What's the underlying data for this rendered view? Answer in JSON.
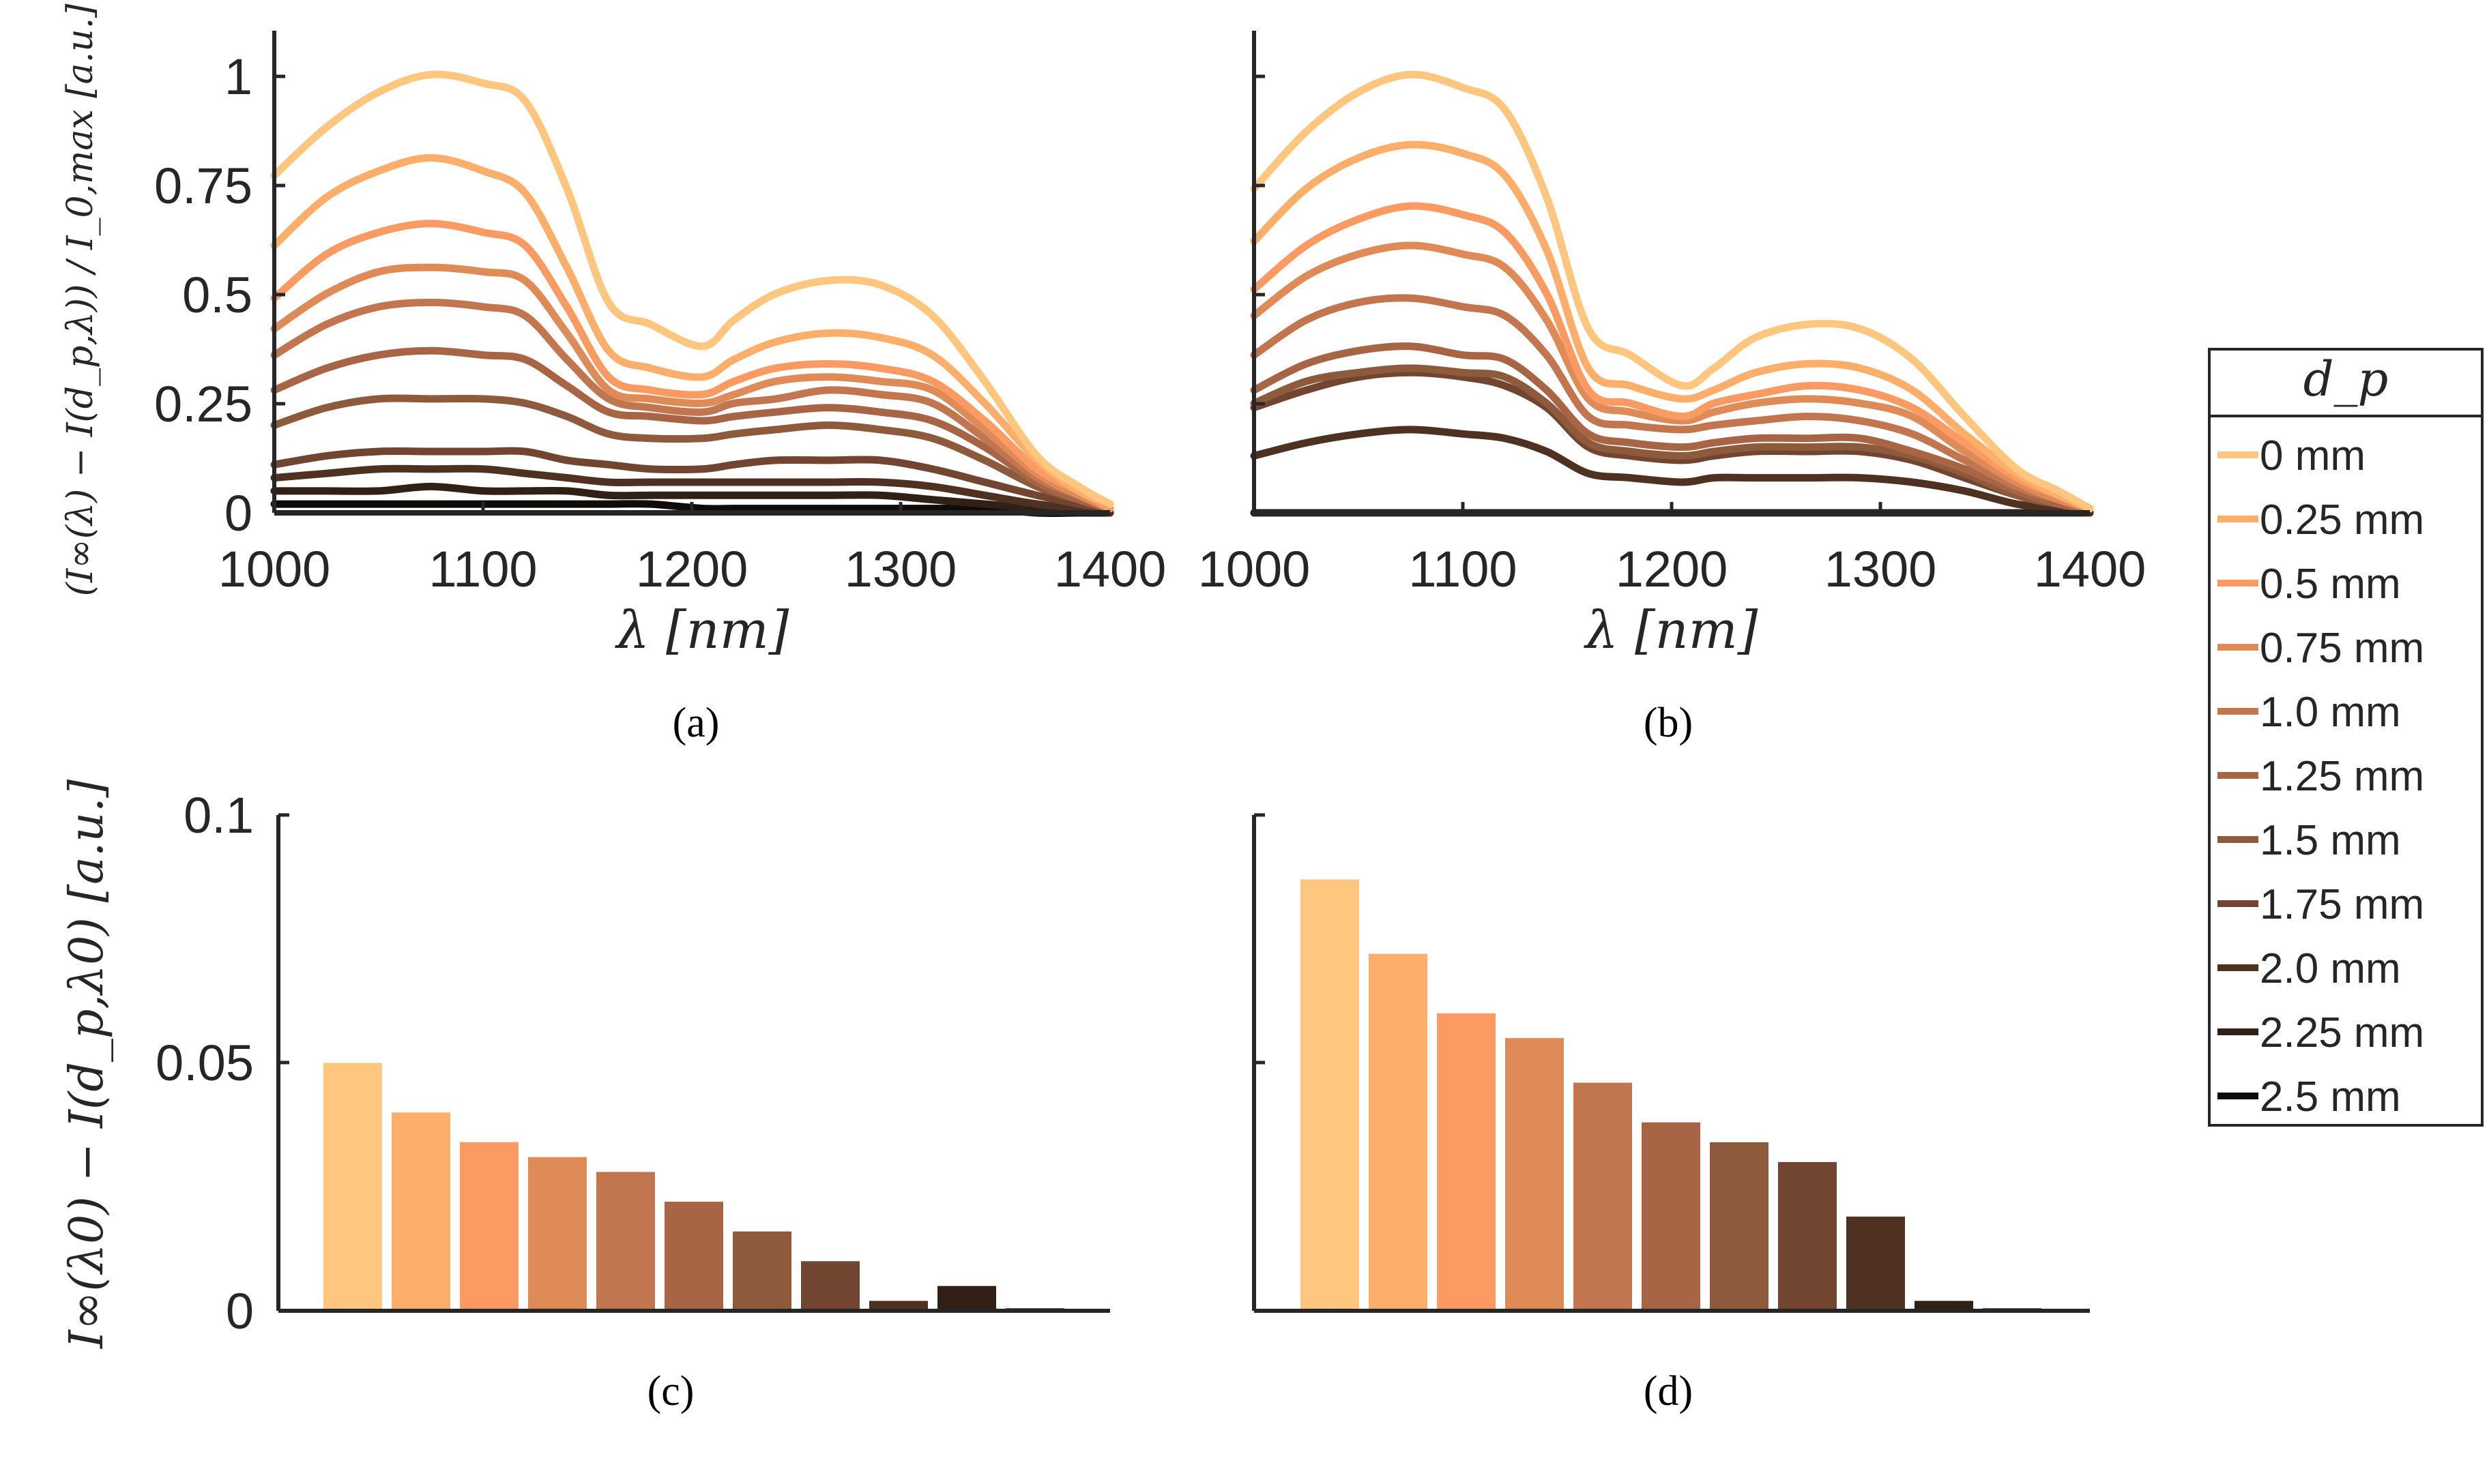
{
  "legend": {
    "title": "d_p",
    "entries": [
      {
        "label": "0 mm",
        "color": "#fec67f"
      },
      {
        "label": "0.25 mm",
        "color": "#fdae6b"
      },
      {
        "label": "0.5 mm",
        "color": "#fb9a62"
      },
      {
        "label": "0.75 mm",
        "color": "#de8b58"
      },
      {
        "label": "1.0 mm",
        "color": "#c17650"
      },
      {
        "label": "1.25 mm",
        "color": "#a86545"
      },
      {
        "label": "1.5 mm",
        "color": "#8e5a3c"
      },
      {
        "label": "1.75 mm",
        "color": "#714530"
      },
      {
        "label": "2.0 mm",
        "color": "#4f3121"
      },
      {
        "label": "2.25 mm",
        "color": "#302016"
      },
      {
        "label": "2.5 mm",
        "color": "#0f0b08"
      }
    ]
  },
  "chart_data": [
    {
      "panel": "(a)",
      "type": "line",
      "xlabel": "λ [nm]",
      "ylabel": "(I∞(λ) − I(d_p,λ)) / I_0,max [a.u.]",
      "xlim": [
        1000,
        1400
      ],
      "ylim": [
        0,
        1.1
      ],
      "xticks": [
        "1000",
        "1100",
        "1200",
        "1300",
        "1400"
      ],
      "yticks": [
        "0",
        "0.25",
        "0.5",
        "0.75",
        "1"
      ],
      "x": [
        1000,
        1025,
        1050,
        1075,
        1100,
        1120,
        1140,
        1160,
        1180,
        1205,
        1220,
        1240,
        1265,
        1290,
        1315,
        1340,
        1365,
        1385,
        1400
      ],
      "series": [
        {
          "name": "0 mm",
          "values": [
            0.77,
            0.88,
            0.96,
            1.0,
            0.98,
            0.94,
            0.74,
            0.48,
            0.43,
            0.38,
            0.44,
            0.5,
            0.53,
            0.52,
            0.45,
            0.3,
            0.13,
            0.06,
            0.02
          ]
        },
        {
          "name": "0.25 mm",
          "values": [
            0.61,
            0.72,
            0.78,
            0.81,
            0.78,
            0.73,
            0.56,
            0.37,
            0.33,
            0.31,
            0.35,
            0.39,
            0.41,
            0.4,
            0.36,
            0.25,
            0.12,
            0.05,
            0.02
          ]
        },
        {
          "name": "0.5 mm",
          "values": [
            0.49,
            0.59,
            0.64,
            0.66,
            0.64,
            0.61,
            0.47,
            0.31,
            0.28,
            0.27,
            0.3,
            0.33,
            0.34,
            0.33,
            0.3,
            0.21,
            0.1,
            0.05,
            0.01
          ]
        },
        {
          "name": "0.75 mm",
          "values": [
            0.42,
            0.5,
            0.55,
            0.56,
            0.55,
            0.53,
            0.41,
            0.28,
            0.26,
            0.25,
            0.27,
            0.3,
            0.31,
            0.3,
            0.28,
            0.19,
            0.09,
            0.04,
            0.01
          ]
        },
        {
          "name": "1.0 mm",
          "values": [
            0.36,
            0.43,
            0.47,
            0.48,
            0.47,
            0.45,
            0.35,
            0.26,
            0.24,
            0.23,
            0.25,
            0.26,
            0.28,
            0.27,
            0.25,
            0.17,
            0.08,
            0.04,
            0.01
          ]
        },
        {
          "name": "1.25 mm",
          "values": [
            0.28,
            0.33,
            0.36,
            0.37,
            0.36,
            0.35,
            0.29,
            0.23,
            0.22,
            0.21,
            0.22,
            0.23,
            0.24,
            0.23,
            0.21,
            0.15,
            0.07,
            0.03,
            0.01
          ]
        },
        {
          "name": "1.5 mm",
          "values": [
            0.2,
            0.24,
            0.26,
            0.26,
            0.26,
            0.25,
            0.22,
            0.18,
            0.17,
            0.17,
            0.18,
            0.19,
            0.2,
            0.19,
            0.17,
            0.12,
            0.06,
            0.03,
            0.01
          ]
        },
        {
          "name": "1.75 mm",
          "values": [
            0.11,
            0.13,
            0.14,
            0.14,
            0.14,
            0.14,
            0.12,
            0.11,
            0.1,
            0.1,
            0.11,
            0.12,
            0.12,
            0.12,
            0.1,
            0.07,
            0.04,
            0.02,
            0.01
          ]
        },
        {
          "name": "2.0 mm",
          "values": [
            0.08,
            0.09,
            0.1,
            0.1,
            0.1,
            0.09,
            0.08,
            0.07,
            0.07,
            0.07,
            0.07,
            0.07,
            0.07,
            0.07,
            0.06,
            0.04,
            0.02,
            0.01,
            0.0
          ]
        },
        {
          "name": "2.25 mm",
          "values": [
            0.05,
            0.05,
            0.05,
            0.06,
            0.05,
            0.05,
            0.05,
            0.04,
            0.04,
            0.04,
            0.04,
            0.04,
            0.04,
            0.04,
            0.03,
            0.02,
            0.01,
            0.01,
            0.0
          ]
        },
        {
          "name": "2.5 mm",
          "values": [
            0.02,
            0.02,
            0.02,
            0.02,
            0.02,
            0.02,
            0.02,
            0.02,
            0.02,
            0.01,
            0.01,
            0.01,
            0.01,
            0.01,
            0.01,
            0.01,
            0.0,
            0.0,
            0.0
          ]
        }
      ]
    },
    {
      "panel": "(b)",
      "type": "line",
      "xlabel": "λ [nm]",
      "xlim": [
        1000,
        1400
      ],
      "ylim": [
        0,
        1.1
      ],
      "xticks": [
        "1000",
        "1100",
        "1200",
        "1300",
        "1400"
      ],
      "x": [
        1000,
        1025,
        1050,
        1075,
        1100,
        1120,
        1140,
        1160,
        1180,
        1205,
        1220,
        1240,
        1265,
        1290,
        1315,
        1340,
        1365,
        1385,
        1400
      ],
      "series": [
        {
          "name": "0 mm",
          "values": [
            0.74,
            0.87,
            0.96,
            1.0,
            0.97,
            0.92,
            0.72,
            0.42,
            0.36,
            0.29,
            0.33,
            0.4,
            0.43,
            0.42,
            0.35,
            0.22,
            0.1,
            0.05,
            0.01
          ]
        },
        {
          "name": "0.25 mm",
          "values": [
            0.62,
            0.74,
            0.81,
            0.84,
            0.82,
            0.77,
            0.6,
            0.33,
            0.29,
            0.26,
            0.28,
            0.32,
            0.34,
            0.33,
            0.28,
            0.18,
            0.09,
            0.04,
            0.01
          ]
        },
        {
          "name": "0.5 mm",
          "values": [
            0.51,
            0.61,
            0.67,
            0.7,
            0.68,
            0.64,
            0.5,
            0.28,
            0.25,
            0.22,
            0.25,
            0.27,
            0.29,
            0.28,
            0.24,
            0.16,
            0.08,
            0.04,
            0.01
          ]
        },
        {
          "name": "0.75 mm",
          "values": [
            0.45,
            0.54,
            0.59,
            0.61,
            0.59,
            0.56,
            0.44,
            0.26,
            0.23,
            0.21,
            0.23,
            0.25,
            0.26,
            0.25,
            0.22,
            0.14,
            0.07,
            0.03,
            0.01
          ]
        },
        {
          "name": "1.0 mm",
          "values": [
            0.36,
            0.44,
            0.48,
            0.49,
            0.47,
            0.45,
            0.36,
            0.22,
            0.2,
            0.19,
            0.2,
            0.21,
            0.22,
            0.21,
            0.18,
            0.12,
            0.06,
            0.03,
            0.01
          ]
        },
        {
          "name": "1.25 mm",
          "values": [
            0.28,
            0.34,
            0.37,
            0.38,
            0.36,
            0.35,
            0.28,
            0.18,
            0.16,
            0.15,
            0.16,
            0.17,
            0.17,
            0.17,
            0.14,
            0.1,
            0.05,
            0.02,
            0.01
          ]
        },
        {
          "name": "1.5 mm",
          "values": [
            0.25,
            0.3,
            0.32,
            0.33,
            0.32,
            0.31,
            0.25,
            0.16,
            0.14,
            0.13,
            0.14,
            0.15,
            0.15,
            0.15,
            0.13,
            0.09,
            0.04,
            0.02,
            0.01
          ]
        },
        {
          "name": "1.75 mm",
          "values": [
            0.24,
            0.28,
            0.31,
            0.32,
            0.31,
            0.29,
            0.24,
            0.15,
            0.13,
            0.12,
            0.13,
            0.14,
            0.14,
            0.14,
            0.12,
            0.08,
            0.04,
            0.02,
            0.01
          ]
        },
        {
          "name": "2.0 mm",
          "values": [
            0.13,
            0.16,
            0.18,
            0.19,
            0.18,
            0.17,
            0.14,
            0.09,
            0.08,
            0.07,
            0.08,
            0.08,
            0.08,
            0.08,
            0.07,
            0.05,
            0.02,
            0.01,
            0.0
          ]
        },
        {
          "name": "2.25 mm",
          "values": [
            0.0,
            0.0,
            0.0,
            0.0,
            0.0,
            0.0,
            0.0,
            0.0,
            0.0,
            0.0,
            0.0,
            0.0,
            0.0,
            0.0,
            0.0,
            0.0,
            0.0,
            0.0,
            0.0
          ]
        },
        {
          "name": "2.5 mm",
          "values": [
            0.0,
            0.0,
            0.0,
            0.0,
            0.0,
            0.0,
            0.0,
            0.0,
            0.0,
            0.0,
            0.0,
            0.0,
            0.0,
            0.0,
            0.0,
            0.0,
            0.0,
            0.0,
            0.0
          ]
        }
      ]
    },
    {
      "panel": "(c)",
      "type": "bar",
      "ylabel": "I∞(λ0) − I(d_p,λ0) [a.u.]",
      "ylim": [
        0,
        0.1
      ],
      "yticks": [
        "0",
        "0.05",
        "0.1"
      ],
      "categories": [
        "0 mm",
        "0.25 mm",
        "0.5 mm",
        "0.75 mm",
        "1.0 mm",
        "1.25 mm",
        "1.5 mm",
        "1.75 mm",
        "2.0 mm",
        "2.25 mm",
        "2.5 mm"
      ],
      "values": [
        0.05,
        0.04,
        0.034,
        0.031,
        0.028,
        0.022,
        0.016,
        0.01,
        0.002,
        0.005,
        0.0005
      ]
    },
    {
      "panel": "(d)",
      "type": "bar",
      "ylim": [
        0,
        0.1
      ],
      "categories": [
        "0 mm",
        "0.25 mm",
        "0.5 mm",
        "0.75 mm",
        "1.0 mm",
        "1.25 mm",
        "1.5 mm",
        "1.75 mm",
        "2.0 mm",
        "2.25 mm",
        "2.5 mm"
      ],
      "values": [
        0.087,
        0.072,
        0.06,
        0.055,
        0.046,
        0.038,
        0.034,
        0.03,
        0.019,
        0.002,
        0.0005
      ]
    }
  ]
}
